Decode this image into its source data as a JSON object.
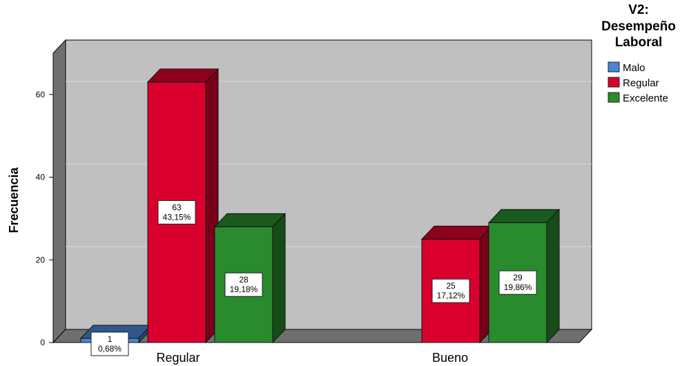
{
  "chart_data": {
    "type": "bar",
    "style": "3d-clustered",
    "categories": [
      "Regular",
      "Bueno"
    ],
    "ylabel": "Frecuencia",
    "ylim": [
      0,
      70
    ],
    "yticks": [
      0,
      20,
      40,
      60
    ],
    "grid": true,
    "legend_title_lines": [
      "V2:",
      "Desempeño",
      "Laboral"
    ],
    "legend_position": "top-right",
    "series": [
      {
        "name": "Malo",
        "color": "#4a86d6",
        "values": [
          1,
          null
        ],
        "labels": [
          "0,68%",
          null
        ]
      },
      {
        "name": "Regular",
        "color": "#d9002e",
        "values": [
          63,
          25
        ],
        "labels": [
          "43,15%",
          "17,12%"
        ]
      },
      {
        "name": "Excelente",
        "color": "#2a8a2e",
        "values": [
          28,
          29
        ],
        "labels": [
          "19,18%",
          "19,86%"
        ]
      }
    ]
  }
}
